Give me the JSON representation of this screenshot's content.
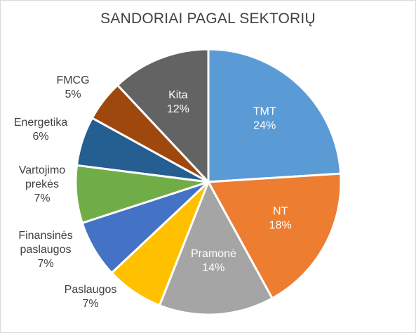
{
  "chart_data": {
    "type": "pie",
    "title": "SANDORIAI PAGAL SEKTORIŲ",
    "slices": [
      {
        "name": "TMT",
        "value": 24,
        "label": "24%",
        "color": "#5B9BD5",
        "inside": true
      },
      {
        "name": "NT",
        "value": 18,
        "label": "18%",
        "color": "#ED7D31",
        "inside": true
      },
      {
        "name": "Pramonė",
        "value": 14,
        "label": "14%",
        "color": "#A5A5A5",
        "inside": true
      },
      {
        "name": "Paslaugos",
        "value": 7,
        "label": "7%",
        "color": "#FFC000",
        "inside": false
      },
      {
        "name": "Finansinės paslaugos",
        "value": 7,
        "label": "7%",
        "color": "#4472C4",
        "inside": false
      },
      {
        "name": "Vartojimo prekės",
        "value": 7,
        "label": "7%",
        "color": "#70AD47",
        "inside": false
      },
      {
        "name": "Energetika",
        "value": 6,
        "label": "6%",
        "color": "#255E91",
        "inside": false
      },
      {
        "name": "FMCG",
        "value": 5,
        "label": "5%",
        "color": "#9E480E",
        "inside": false
      },
      {
        "name": "Kita",
        "value": 12,
        "label": "12%",
        "color": "#636363",
        "inside": true
      }
    ],
    "inside_text_color": "#ffffff",
    "outside_text_color": "#404040",
    "legend": "none"
  }
}
